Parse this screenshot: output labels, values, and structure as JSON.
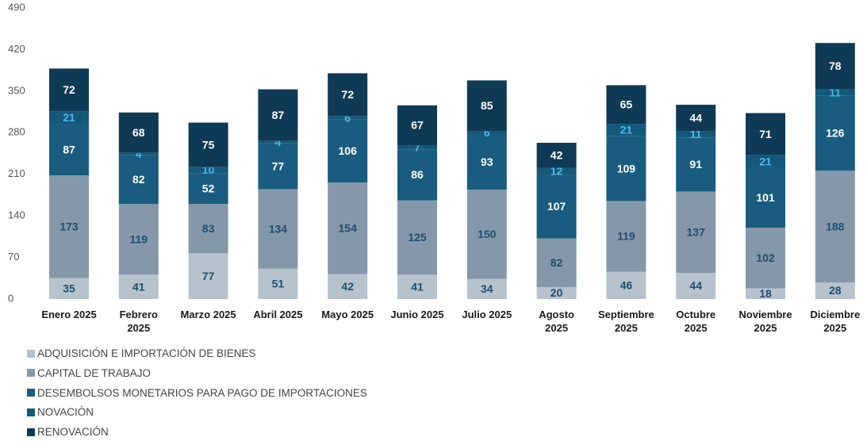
{
  "chart_data": {
    "type": "stacked_bar",
    "categories": [
      "Enero 2025",
      "Febrero\n2025",
      "Marzo 2025",
      "Abril 2025",
      "Mayo 2025",
      "Junio 2025",
      "Julio 2025",
      "Agosto\n2025",
      "Septiembre\n2025",
      "Octubre\n2025",
      "Noviembre\n2025",
      "Diciembre\n2025"
    ],
    "series": [
      {
        "name": "ADQUISICIÓN E IMPORTACIÓN DE BIENES",
        "color": "#b6c2cc",
        "label_color": "#1f4e6e",
        "values": [
          35,
          41,
          77,
          51,
          42,
          41,
          34,
          20,
          46,
          44,
          18,
          28
        ]
      },
      {
        "name": "CAPITAL DE TRABAJO",
        "color": "#8598a9",
        "label_color": "#1f4e6e",
        "values": [
          173,
          119,
          83,
          134,
          154,
          125,
          150,
          82,
          119,
          137,
          102,
          188
        ]
      },
      {
        "name": "DESEMBOLSOS MONETARIOS PARA PAGO DE IMPORTACIONES",
        "color": "#195c7f",
        "label_color": "#ffffff",
        "values": [
          87,
          82,
          52,
          77,
          106,
          86,
          93,
          107,
          109,
          91,
          101,
          126
        ]
      },
      {
        "name": "NOVACIÓN",
        "color": "#14587a",
        "label_color": "#4ab6e8",
        "values": [
          21,
          4,
          10,
          4,
          6,
          7,
          6,
          12,
          21,
          11,
          21,
          11
        ]
      },
      {
        "name": "RENOVACIÓN",
        "color": "#0f3a55",
        "label_color": "#ffffff",
        "values": [
          72,
          68,
          75,
          87,
          72,
          67,
          85,
          42,
          65,
          44,
          71,
          78
        ]
      }
    ],
    "ylim": [
      0,
      490
    ],
    "yticks": [
      0,
      70,
      140,
      210,
      280,
      350,
      420,
      490
    ],
    "grid": false,
    "legend": "bottom-left"
  }
}
